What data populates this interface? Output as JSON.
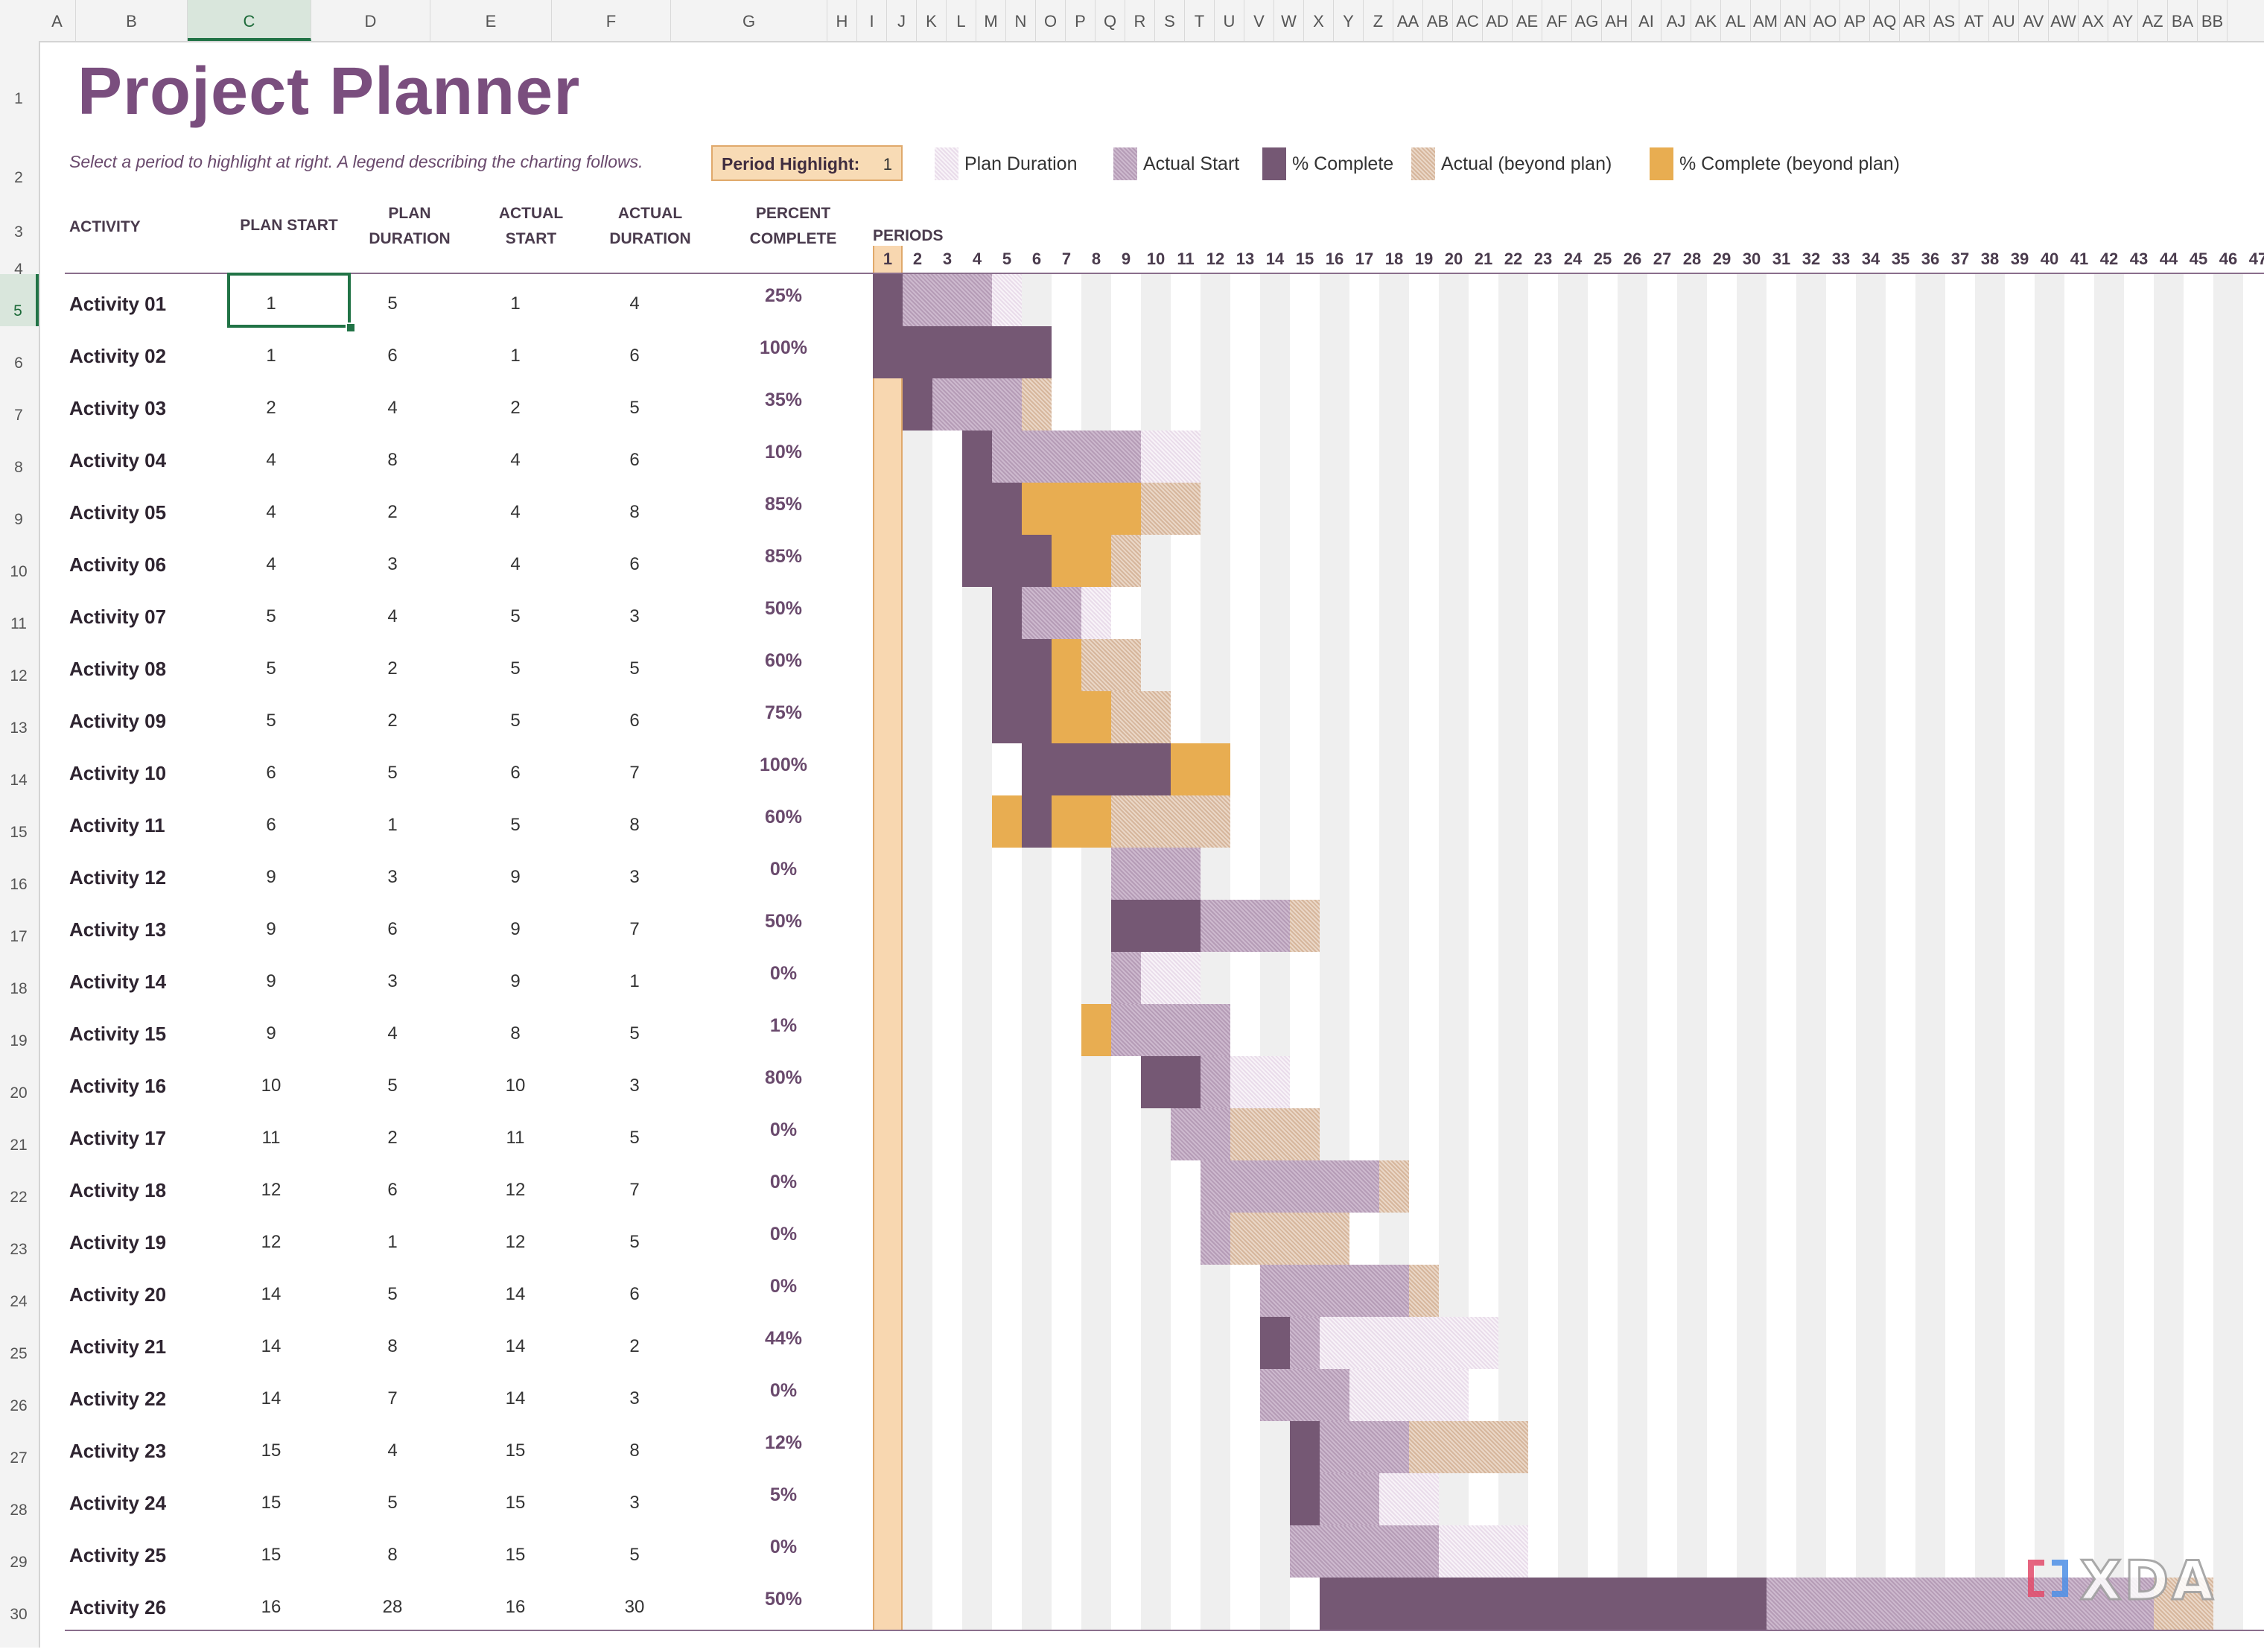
{
  "sheet": {
    "selected_column": "C",
    "selected_row": 5,
    "columns": [
      {
        "letter": "A"
      },
      {
        "letter": "B"
      },
      {
        "letter": "C"
      },
      {
        "letter": "D"
      },
      {
        "letter": "E"
      },
      {
        "letter": "F"
      },
      {
        "letter": "G"
      },
      {
        "letter": "H"
      },
      {
        "letter": "I"
      },
      {
        "letter": "J"
      },
      {
        "letter": "K"
      },
      {
        "letter": "L"
      },
      {
        "letter": "M"
      },
      {
        "letter": "N"
      },
      {
        "letter": "O"
      },
      {
        "letter": "P"
      },
      {
        "letter": "Q"
      },
      {
        "letter": "R"
      },
      {
        "letter": "S"
      },
      {
        "letter": "T"
      },
      {
        "letter": "U"
      },
      {
        "letter": "V"
      },
      {
        "letter": "W"
      },
      {
        "letter": "X"
      },
      {
        "letter": "Y"
      },
      {
        "letter": "Z"
      },
      {
        "letter": "AA"
      },
      {
        "letter": "AB"
      },
      {
        "letter": "AC"
      },
      {
        "letter": "AD"
      },
      {
        "letter": "AE"
      },
      {
        "letter": "AF"
      },
      {
        "letter": "AG"
      },
      {
        "letter": "AH"
      },
      {
        "letter": "AI"
      },
      {
        "letter": "AJ"
      },
      {
        "letter": "AK"
      },
      {
        "letter": "AL"
      },
      {
        "letter": "AM"
      },
      {
        "letter": "AN"
      },
      {
        "letter": "AO"
      },
      {
        "letter": "AP"
      },
      {
        "letter": "AQ"
      },
      {
        "letter": "AR"
      },
      {
        "letter": "AS"
      },
      {
        "letter": "AT"
      },
      {
        "letter": "AU"
      },
      {
        "letter": "AV"
      },
      {
        "letter": "AW"
      },
      {
        "letter": "AX"
      },
      {
        "letter": "AY"
      },
      {
        "letter": "AZ"
      },
      {
        "letter": "BA"
      },
      {
        "letter": "BB"
      }
    ],
    "row_numbers": [
      "1",
      "2",
      "3",
      "4",
      "5",
      "6",
      "7",
      "8",
      "9",
      "10",
      "11",
      "12",
      "13",
      "14",
      "15",
      "16",
      "17",
      "18",
      "19",
      "20",
      "21",
      "22",
      "23",
      "24",
      "25",
      "26",
      "27",
      "28",
      "29",
      "30"
    ]
  },
  "planner": {
    "title": "Project Planner",
    "instructions": "Select a period to highlight at right.  A legend describing the charting follows.",
    "period_highlight_label": "Period Highlight:",
    "period_highlight_value": "1",
    "legend": [
      {
        "label": "Plan Duration",
        "kind": "plan"
      },
      {
        "label": "Actual Start",
        "kind": "actual"
      },
      {
        "label": "% Complete",
        "kind": "complete"
      },
      {
        "label": "Actual (beyond plan)",
        "kind": "beyond"
      },
      {
        "label": "% Complete (beyond plan)",
        "kind": "cbeyond"
      }
    ],
    "headers": {
      "activity": "ACTIVITY",
      "plan_start": "PLAN START",
      "plan_duration_1": "PLAN",
      "plan_duration_2": "DURATION",
      "actual_start_1": "ACTUAL",
      "actual_start_2": "START",
      "actual_duration_1": "ACTUAL",
      "actual_duration_2": "DURATION",
      "percent_1": "PERCENT",
      "percent_2": "COMPLETE",
      "periods": "PERIODS"
    },
    "period_numbers": [
      "1",
      "2",
      "3",
      "4",
      "5",
      "6",
      "7",
      "8",
      "9",
      "10",
      "11",
      "12",
      "13",
      "14",
      "15",
      "16",
      "17",
      "18",
      "19",
      "20",
      "21",
      "22",
      "23",
      "24",
      "25",
      "26",
      "27",
      "28",
      "29",
      "30",
      "31",
      "32",
      "33",
      "34",
      "35",
      "36",
      "37",
      "38",
      "39",
      "40",
      "41",
      "42",
      "43",
      "44",
      "45",
      "46",
      "47"
    ],
    "activities": [
      {
        "name": "Activity 01",
        "plan_start": "1",
        "plan_duration": "5",
        "actual_start": "1",
        "actual_duration": "4",
        "percent": "25%"
      },
      {
        "name": "Activity 02",
        "plan_start": "1",
        "plan_duration": "6",
        "actual_start": "1",
        "actual_duration": "6",
        "percent": "100%"
      },
      {
        "name": "Activity 03",
        "plan_start": "2",
        "plan_duration": "4",
        "actual_start": "2",
        "actual_duration": "5",
        "percent": "35%"
      },
      {
        "name": "Activity 04",
        "plan_start": "4",
        "plan_duration": "8",
        "actual_start": "4",
        "actual_duration": "6",
        "percent": "10%"
      },
      {
        "name": "Activity 05",
        "plan_start": "4",
        "plan_duration": "2",
        "actual_start": "4",
        "actual_duration": "8",
        "percent": "85%"
      },
      {
        "name": "Activity 06",
        "plan_start": "4",
        "plan_duration": "3",
        "actual_start": "4",
        "actual_duration": "6",
        "percent": "85%"
      },
      {
        "name": "Activity 07",
        "plan_start": "5",
        "plan_duration": "4",
        "actual_start": "5",
        "actual_duration": "3",
        "percent": "50%"
      },
      {
        "name": "Activity 08",
        "plan_start": "5",
        "plan_duration": "2",
        "actual_start": "5",
        "actual_duration": "5",
        "percent": "60%"
      },
      {
        "name": "Activity 09",
        "plan_start": "5",
        "plan_duration": "2",
        "actual_start": "5",
        "actual_duration": "6",
        "percent": "75%"
      },
      {
        "name": "Activity 10",
        "plan_start": "6",
        "plan_duration": "5",
        "actual_start": "6",
        "actual_duration": "7",
        "percent": "100%"
      },
      {
        "name": "Activity 11",
        "plan_start": "6",
        "plan_duration": "1",
        "actual_start": "5",
        "actual_duration": "8",
        "percent": "60%"
      },
      {
        "name": "Activity 12",
        "plan_start": "9",
        "plan_duration": "3",
        "actual_start": "9",
        "actual_duration": "3",
        "percent": "0%"
      },
      {
        "name": "Activity 13",
        "plan_start": "9",
        "plan_duration": "6",
        "actual_start": "9",
        "actual_duration": "7",
        "percent": "50%"
      },
      {
        "name": "Activity 14",
        "plan_start": "9",
        "plan_duration": "3",
        "actual_start": "9",
        "actual_duration": "1",
        "percent": "0%"
      },
      {
        "name": "Activity 15",
        "plan_start": "9",
        "plan_duration": "4",
        "actual_start": "8",
        "actual_duration": "5",
        "percent": "1%"
      },
      {
        "name": "Activity 16",
        "plan_start": "10",
        "plan_duration": "5",
        "actual_start": "10",
        "actual_duration": "3",
        "percent": "80%"
      },
      {
        "name": "Activity 17",
        "plan_start": "11",
        "plan_duration": "2",
        "actual_start": "11",
        "actual_duration": "5",
        "percent": "0%"
      },
      {
        "name": "Activity 18",
        "plan_start": "12",
        "plan_duration": "6",
        "actual_start": "12",
        "actual_duration": "7",
        "percent": "0%"
      },
      {
        "name": "Activity 19",
        "plan_start": "12",
        "plan_duration": "1",
        "actual_start": "12",
        "actual_duration": "5",
        "percent": "0%"
      },
      {
        "name": "Activity 20",
        "plan_start": "14",
        "plan_duration": "5",
        "actual_start": "14",
        "actual_duration": "6",
        "percent": "0%"
      },
      {
        "name": "Activity 21",
        "plan_start": "14",
        "plan_duration": "8",
        "actual_start": "14",
        "actual_duration": "2",
        "percent": "44%"
      },
      {
        "name": "Activity 22",
        "plan_start": "14",
        "plan_duration": "7",
        "actual_start": "14",
        "actual_duration": "3",
        "percent": "0%"
      },
      {
        "name": "Activity 23",
        "plan_start": "15",
        "plan_duration": "4",
        "actual_start": "15",
        "actual_duration": "8",
        "percent": "12%"
      },
      {
        "name": "Activity 24",
        "plan_start": "15",
        "plan_duration": "5",
        "actual_start": "15",
        "actual_duration": "3",
        "percent": "5%"
      },
      {
        "name": "Activity 25",
        "plan_start": "15",
        "plan_duration": "8",
        "actual_start": "15",
        "actual_duration": "5",
        "percent": "0%"
      },
      {
        "name": "Activity 26",
        "plan_start": "16",
        "plan_duration": "28",
        "actual_start": "16",
        "actual_duration": "30",
        "percent": "50%"
      }
    ]
  },
  "gantt": {
    "highlight_period": 1,
    "bars": [
      [
        {
          "kind": "complete",
          "start": 1,
          "end": 2
        },
        {
          "kind": "actual",
          "start": 2,
          "end": 5
        },
        {
          "kind": "plan",
          "start": 5,
          "end": 6
        }
      ],
      [
        {
          "kind": "complete",
          "start": 1,
          "end": 7
        }
      ],
      [
        {
          "kind": "complete",
          "start": 2,
          "end": 3
        },
        {
          "kind": "actual",
          "start": 3,
          "end": 6
        },
        {
          "kind": "beyond",
          "start": 6,
          "end": 7
        }
      ],
      [
        {
          "kind": "complete",
          "start": 4,
          "end": 5
        },
        {
          "kind": "actual",
          "start": 5,
          "end": 10
        },
        {
          "kind": "plan",
          "start": 10,
          "end": 12
        }
      ],
      [
        {
          "kind": "complete",
          "start": 4,
          "end": 6
        },
        {
          "kind": "cbeyond",
          "start": 6,
          "end": 10
        },
        {
          "kind": "beyond",
          "start": 10,
          "end": 12
        }
      ],
      [
        {
          "kind": "complete",
          "start": 4,
          "end": 7
        },
        {
          "kind": "cbeyond",
          "start": 7,
          "end": 9
        },
        {
          "kind": "beyond",
          "start": 9,
          "end": 10
        }
      ],
      [
        {
          "kind": "complete",
          "start": 5,
          "end": 6
        },
        {
          "kind": "actual",
          "start": 6,
          "end": 8
        },
        {
          "kind": "plan",
          "start": 8,
          "end": 9
        }
      ],
      [
        {
          "kind": "complete",
          "start": 5,
          "end": 7
        },
        {
          "kind": "cbeyond",
          "start": 7,
          "end": 8
        },
        {
          "kind": "beyond",
          "start": 8,
          "end": 10
        }
      ],
      [
        {
          "kind": "complete",
          "start": 5,
          "end": 7
        },
        {
          "kind": "cbeyond",
          "start": 7,
          "end": 9
        },
        {
          "kind": "beyond",
          "start": 9,
          "end": 11
        }
      ],
      [
        {
          "kind": "complete",
          "start": 6,
          "end": 11
        },
        {
          "kind": "cbeyond",
          "start": 11,
          "end": 13
        }
      ],
      [
        {
          "kind": "cbeyond",
          "start": 5,
          "end": 6
        },
        {
          "kind": "complete",
          "start": 6,
          "end": 7
        },
        {
          "kind": "cbeyond",
          "start": 7,
          "end": 9
        },
        {
          "kind": "beyond",
          "start": 9,
          "end": 13
        }
      ],
      [
        {
          "kind": "actual",
          "start": 9,
          "end": 12
        }
      ],
      [
        {
          "kind": "complete",
          "start": 9,
          "end": 12
        },
        {
          "kind": "actual",
          "start": 12,
          "end": 15
        },
        {
          "kind": "beyond",
          "start": 15,
          "end": 16
        }
      ],
      [
        {
          "kind": "actual",
          "start": 9,
          "end": 10
        },
        {
          "kind": "plan",
          "start": 10,
          "end": 12
        }
      ],
      [
        {
          "kind": "cbeyond",
          "start": 8,
          "end": 9
        },
        {
          "kind": "actual",
          "start": 9,
          "end": 13
        }
      ],
      [
        {
          "kind": "complete",
          "start": 10,
          "end": 12
        },
        {
          "kind": "actual",
          "start": 12,
          "end": 13
        },
        {
          "kind": "plan",
          "start": 13,
          "end": 15
        }
      ],
      [
        {
          "kind": "actual",
          "start": 11,
          "end": 13
        },
        {
          "kind": "beyond",
          "start": 13,
          "end": 16
        }
      ],
      [
        {
          "kind": "actual",
          "start": 12,
          "end": 18
        },
        {
          "kind": "beyond",
          "start": 18,
          "end": 19
        }
      ],
      [
        {
          "kind": "actual",
          "start": 12,
          "end": 13
        },
        {
          "kind": "beyond",
          "start": 13,
          "end": 17
        }
      ],
      [
        {
          "kind": "actual",
          "start": 14,
          "end": 19
        },
        {
          "kind": "beyond",
          "start": 19,
          "end": 20
        }
      ],
      [
        {
          "kind": "complete",
          "start": 14,
          "end": 15
        },
        {
          "kind": "actual",
          "start": 15,
          "end": 16
        },
        {
          "kind": "plan",
          "start": 16,
          "end": 22
        }
      ],
      [
        {
          "kind": "actual",
          "start": 14,
          "end": 17
        },
        {
          "kind": "plan",
          "start": 17,
          "end": 21
        }
      ],
      [
        {
          "kind": "complete",
          "start": 15,
          "end": 16
        },
        {
          "kind": "actual",
          "start": 16,
          "end": 19
        },
        {
          "kind": "beyond",
          "start": 19,
          "end": 23
        }
      ],
      [
        {
          "kind": "complete",
          "start": 15,
          "end": 16
        },
        {
          "kind": "actual",
          "start": 16,
          "end": 18
        },
        {
          "kind": "plan",
          "start": 18,
          "end": 20
        }
      ],
      [
        {
          "kind": "actual",
          "start": 15,
          "end": 20
        },
        {
          "kind": "plan",
          "start": 20,
          "end": 23
        }
      ],
      [
        {
          "kind": "complete",
          "start": 16,
          "end": 31
        },
        {
          "kind": "actual",
          "start": 31,
          "end": 44
        },
        {
          "kind": "beyond",
          "start": 44,
          "end": 46
        }
      ]
    ]
  },
  "watermark": "XDA",
  "colors": {
    "title": "#7a4e7e",
    "complete": "#755874",
    "complete_beyond": "#e8ad51",
    "highlight": "#f8d7b0",
    "selection": "#217346"
  }
}
